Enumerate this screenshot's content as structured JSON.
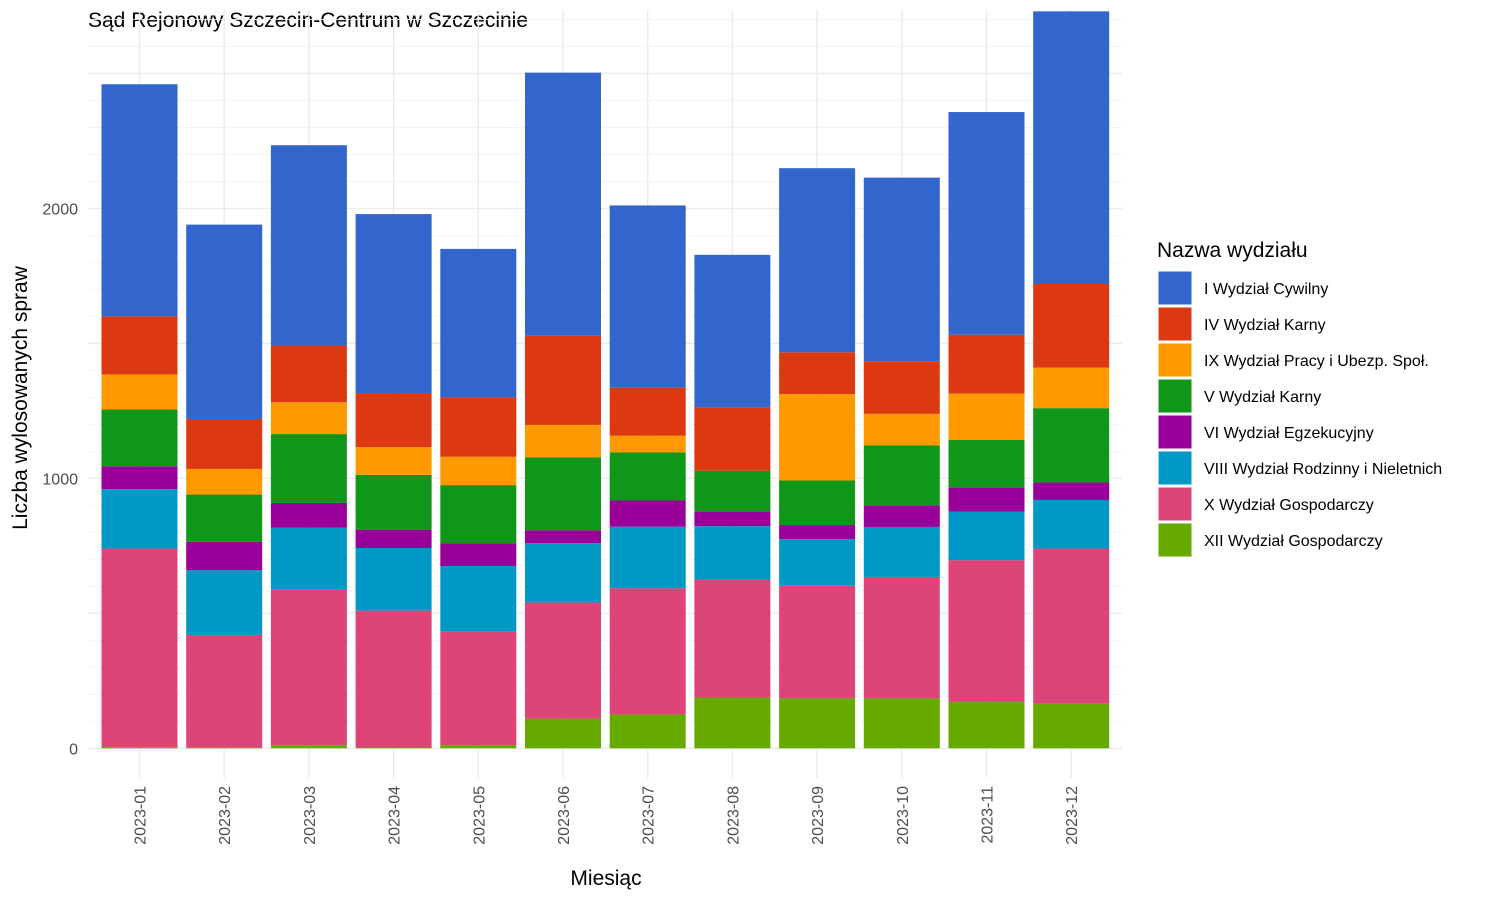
{
  "chart_data": {
    "type": "bar",
    "stacked": true,
    "title": "Sąd Rejonowy Szczecin-Centrum w Szczecinie",
    "xlabel": "Miesiąc",
    "ylabel": "Liczba wylosowanych spraw",
    "ylim": [
      -110,
      2735
    ],
    "yticks": [
      0,
      1000,
      2000
    ],
    "grid": true,
    "legend_title": "Nazwa wydziału",
    "legend_position": "right",
    "categories": [
      "2023-01",
      "2023-02",
      "2023-03",
      "2023-04",
      "2023-05",
      "2023-06",
      "2023-07",
      "2023-08",
      "2023-09",
      "2023-10",
      "2023-11",
      "2023-12"
    ],
    "series": [
      {
        "name": "XII Wydział Gospodarczy",
        "color": "#66aa00",
        "values": [
          5,
          2,
          12,
          3,
          12,
          110,
          125,
          188,
          185,
          185,
          172,
          165
        ]
      },
      {
        "name": "X Wydział Gospodarczy",
        "color": "#dd4477",
        "values": [
          735,
          418,
          575,
          507,
          420,
          430,
          468,
          437,
          417,
          450,
          525,
          575
        ]
      },
      {
        "name": "VIII Wydział Rodzinny i Nieletnich",
        "color": "#0099c6",
        "values": [
          220,
          240,
          230,
          232,
          243,
          220,
          228,
          198,
          173,
          185,
          180,
          180
        ]
      },
      {
        "name": "VI Wydział Egzekucyjny",
        "color": "#990099",
        "values": [
          85,
          105,
          92,
          68,
          85,
          48,
          97,
          55,
          52,
          80,
          90,
          65
        ]
      },
      {
        "name": "V Wydział Karny",
        "color": "#109618",
        "values": [
          210,
          175,
          255,
          203,
          215,
          270,
          178,
          150,
          165,
          222,
          175,
          275
        ]
      },
      {
        "name": "IX Wydział Pracy i Ubezp. Społ.",
        "color": "#ff9900",
        "values": [
          130,
          95,
          118,
          103,
          105,
          120,
          62,
          0,
          320,
          117,
          172,
          150
        ]
      },
      {
        "name": "IV Wydział Karny",
        "color": "#dc3912",
        "values": [
          215,
          185,
          210,
          200,
          220,
          330,
          178,
          235,
          155,
          195,
          218,
          310
        ]
      },
      {
        "name": "I Wydział Cywilny",
        "color": "#3366cc",
        "values": [
          860,
          720,
          742,
          663,
          550,
          975,
          675,
          565,
          682,
          680,
          825,
          1010
        ]
      }
    ]
  },
  "legend_order": [
    "I Wydział Cywilny",
    "IV Wydział Karny",
    "IX Wydział Pracy i Ubezp. Społ.",
    "V Wydział Karny",
    "VI Wydział Egzekucyjny",
    "VIII Wydział Rodzinny i Nieletnich",
    "X Wydział Gospodarczy",
    "XII Wydział Gospodarczy"
  ]
}
